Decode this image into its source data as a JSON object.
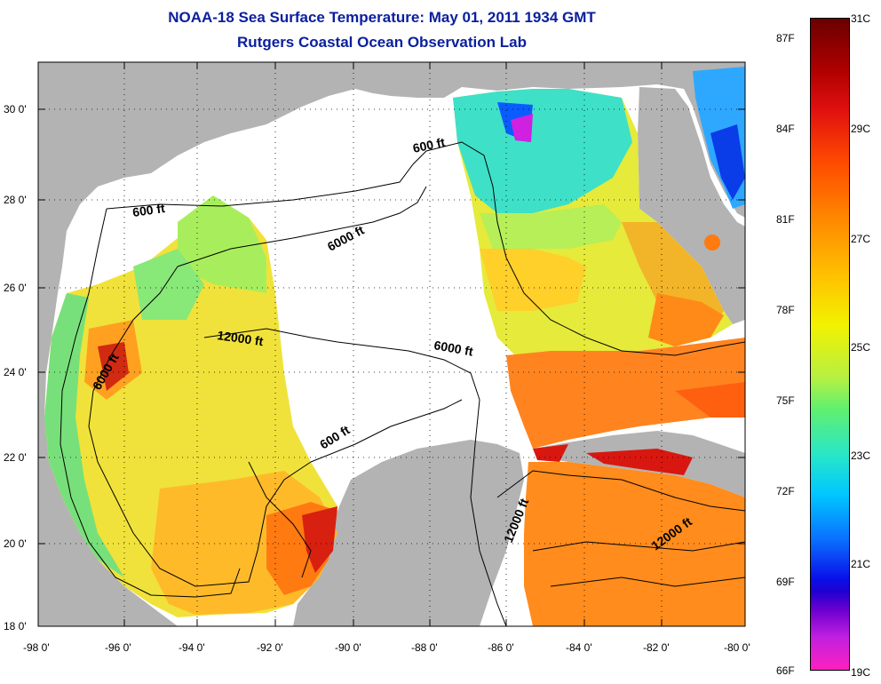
{
  "title": {
    "line1": "NOAA-18 Sea Surface Temperature:  May 01, 2011 1934 GMT",
    "line2": "Rutgers Coastal Ocean Observation Lab"
  },
  "axes": {
    "y_labels": [
      "30 0'",
      "28 0'",
      "26 0'",
      "24 0'",
      "22 0'",
      "20 0'",
      "18 0'"
    ],
    "x_labels": [
      "-98 0'",
      "-96 0'",
      "-94 0'",
      "-92 0'",
      "-90 0'",
      "-88 0'",
      "-86 0'",
      "-84 0'",
      "-82 0'",
      "-80 0'"
    ]
  },
  "contours": {
    "c600a": "600 ft",
    "c600b": "600 ft",
    "c6000a": "6000 ft",
    "c6000b": "6000 ft",
    "c6000c": "6000 ft",
    "c600c": "600 ft",
    "c12000a": "12000 ft",
    "c12000b": "12000 ft",
    "c12000c": "12000 ft"
  },
  "colorbar": {
    "fahrenheit": [
      "87F",
      "84F",
      "81F",
      "78F",
      "75F",
      "72F",
      "69F",
      "66F"
    ],
    "celsius": [
      "31C",
      "29C",
      "27C",
      "25C",
      "23C",
      "21C",
      "19C"
    ]
  },
  "colors": {
    "land": "#b3b3b3",
    "no_data": "#ffffff",
    "title": "#0a1f9e"
  }
}
